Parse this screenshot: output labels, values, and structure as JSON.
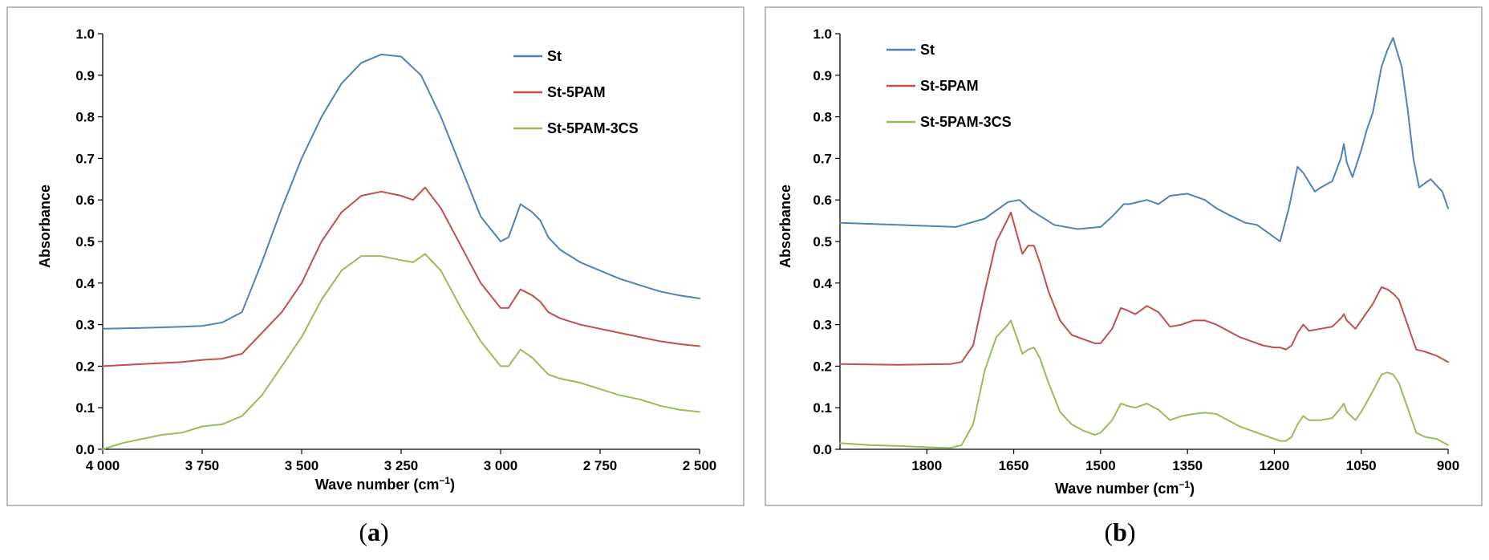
{
  "chart_data": [
    {
      "type": "line",
      "panel_label": "a",
      "caption": {
        "open": "(",
        "letter": "a",
        "close": ")"
      },
      "xlabel": "Wave number  (cm",
      "xlabel_sup": "−1",
      "xlabel_close": ")",
      "ylabel": "Absorbance",
      "xlim": [
        4000,
        2500
      ],
      "ylim": [
        0,
        1.0
      ],
      "x_reversed": true,
      "x_ticks": [
        4000,
        3750,
        3500,
        3250,
        3000,
        2750,
        2500
      ],
      "x_tick_labels": [
        "4 000",
        "3 750",
        "3 500",
        "3 250",
        "3 000",
        "2 750",
        "2 500"
      ],
      "y_ticks": [
        0,
        0.1,
        0.2,
        0.3,
        0.4,
        0.5,
        0.6,
        0.7,
        0.8,
        0.9,
        1.0
      ],
      "y_tick_labels": [
        "0.0",
        "0.1",
        "0.2",
        "0.3",
        "0.4",
        "0.5",
        "0.6",
        "0.7",
        "0.8",
        "0.9",
        "1.0"
      ],
      "legend_position": "top-right",
      "series": [
        {
          "name": "St",
          "color": "#4f81bd",
          "x": [
            4000,
            3900,
            3800,
            3750,
            3700,
            3650,
            3600,
            3550,
            3500,
            3450,
            3400,
            3350,
            3300,
            3250,
            3200,
            3150,
            3100,
            3050,
            3000,
            2980,
            2950,
            2920,
            2900,
            2880,
            2850,
            2800,
            2750,
            2700,
            2650,
            2600,
            2550,
            2500
          ],
          "y": [
            0.29,
            0.292,
            0.295,
            0.297,
            0.305,
            0.33,
            0.45,
            0.58,
            0.7,
            0.8,
            0.88,
            0.93,
            0.95,
            0.945,
            0.9,
            0.8,
            0.68,
            0.56,
            0.5,
            0.51,
            0.59,
            0.57,
            0.55,
            0.51,
            0.48,
            0.45,
            0.43,
            0.41,
            0.395,
            0.38,
            0.37,
            0.363
          ]
        },
        {
          "name": "St-5PAM",
          "color": "#c0504d",
          "x": [
            4000,
            3900,
            3800,
            3750,
            3700,
            3650,
            3600,
            3550,
            3500,
            3450,
            3400,
            3350,
            3300,
            3250,
            3220,
            3190,
            3150,
            3100,
            3050,
            3000,
            2980,
            2950,
            2920,
            2900,
            2880,
            2850,
            2800,
            2750,
            2700,
            2650,
            2600,
            2550,
            2500
          ],
          "y": [
            0.2,
            0.205,
            0.21,
            0.215,
            0.218,
            0.23,
            0.28,
            0.33,
            0.4,
            0.5,
            0.57,
            0.61,
            0.62,
            0.61,
            0.6,
            0.63,
            0.58,
            0.49,
            0.4,
            0.34,
            0.34,
            0.385,
            0.37,
            0.355,
            0.33,
            0.315,
            0.3,
            0.29,
            0.28,
            0.27,
            0.26,
            0.253,
            0.248
          ]
        },
        {
          "name": "St-5PAM-3CS",
          "color": "#9bbb59",
          "x": [
            4000,
            3950,
            3900,
            3850,
            3800,
            3750,
            3700,
            3650,
            3600,
            3550,
            3500,
            3450,
            3400,
            3350,
            3300,
            3250,
            3220,
            3190,
            3150,
            3100,
            3050,
            3000,
            2980,
            2950,
            2920,
            2900,
            2880,
            2850,
            2800,
            2750,
            2700,
            2650,
            2600,
            2550,
            2500
          ],
          "y": [
            0.0,
            0.015,
            0.025,
            0.035,
            0.04,
            0.055,
            0.06,
            0.08,
            0.13,
            0.2,
            0.27,
            0.36,
            0.43,
            0.465,
            0.465,
            0.455,
            0.45,
            0.47,
            0.43,
            0.34,
            0.26,
            0.2,
            0.2,
            0.24,
            0.22,
            0.2,
            0.18,
            0.17,
            0.16,
            0.145,
            0.13,
            0.12,
            0.105,
            0.095,
            0.09
          ]
        }
      ]
    },
    {
      "type": "line",
      "panel_label": "b",
      "caption": {
        "open": "(",
        "letter": "b",
        "close": ")"
      },
      "xlabel": "Wave number (cm",
      "xlabel_sup": "−1",
      "xlabel_close": ")",
      "ylabel": "Absorbance",
      "xlim": [
        1950,
        900
      ],
      "ylim": [
        0,
        1.0
      ],
      "x_reversed": true,
      "x_ticks": [
        1800,
        1650,
        1500,
        1350,
        1200,
        1050,
        900
      ],
      "x_tick_labels": [
        "1800",
        "1650",
        "1500",
        "1350",
        "1200",
        "1050",
        "900"
      ],
      "y_ticks": [
        0,
        0.1,
        0.2,
        0.3,
        0.4,
        0.5,
        0.6,
        0.7,
        0.8,
        0.9,
        1.0
      ],
      "y_tick_labels": [
        "0.0",
        "0.1",
        "0.2",
        "0.3",
        "0.4",
        "0.5",
        "0.6",
        "0.7",
        "0.8",
        "0.9",
        "1.0"
      ],
      "legend_position": "top-left",
      "series": [
        {
          "name": "St",
          "color": "#4f81bd",
          "x": [
            1950,
            1850,
            1750,
            1700,
            1660,
            1640,
            1620,
            1580,
            1540,
            1500,
            1480,
            1460,
            1450,
            1420,
            1400,
            1380,
            1350,
            1320,
            1300,
            1280,
            1250,
            1230,
            1210,
            1190,
            1175,
            1160,
            1150,
            1130,
            1120,
            1100,
            1085,
            1080,
            1075,
            1065,
            1050,
            1040,
            1030,
            1015,
            1005,
            995,
            980,
            970,
            960,
            950,
            930,
            910,
            900
          ],
          "y": [
            0.545,
            0.54,
            0.535,
            0.555,
            0.595,
            0.6,
            0.575,
            0.54,
            0.53,
            0.535,
            0.56,
            0.59,
            0.59,
            0.6,
            0.59,
            0.61,
            0.615,
            0.6,
            0.58,
            0.565,
            0.545,
            0.54,
            0.52,
            0.5,
            0.58,
            0.68,
            0.665,
            0.62,
            0.63,
            0.645,
            0.7,
            0.735,
            0.69,
            0.655,
            0.72,
            0.77,
            0.81,
            0.92,
            0.96,
            0.99,
            0.92,
            0.82,
            0.7,
            0.63,
            0.65,
            0.62,
            0.58
          ]
        },
        {
          "name": "St-5PAM",
          "color": "#c0504d",
          "x": [
            1950,
            1850,
            1760,
            1740,
            1720,
            1700,
            1680,
            1660,
            1655,
            1645,
            1635,
            1625,
            1615,
            1605,
            1590,
            1570,
            1550,
            1530,
            1510,
            1500,
            1480,
            1465,
            1455,
            1440,
            1420,
            1400,
            1380,
            1360,
            1340,
            1320,
            1300,
            1280,
            1260,
            1240,
            1220,
            1200,
            1190,
            1180,
            1170,
            1160,
            1150,
            1140,
            1120,
            1100,
            1085,
            1080,
            1075,
            1060,
            1050,
            1030,
            1015,
            1005,
            995,
            985,
            970,
            955,
            940,
            920,
            900
          ],
          "y": [
            0.205,
            0.203,
            0.205,
            0.21,
            0.25,
            0.38,
            0.5,
            0.555,
            0.57,
            0.52,
            0.47,
            0.49,
            0.49,
            0.45,
            0.38,
            0.31,
            0.275,
            0.265,
            0.255,
            0.255,
            0.29,
            0.34,
            0.335,
            0.325,
            0.345,
            0.33,
            0.295,
            0.3,
            0.31,
            0.31,
            0.3,
            0.285,
            0.27,
            0.26,
            0.25,
            0.245,
            0.245,
            0.24,
            0.25,
            0.28,
            0.3,
            0.285,
            0.29,
            0.295,
            0.315,
            0.325,
            0.31,
            0.29,
            0.31,
            0.35,
            0.39,
            0.385,
            0.375,
            0.36,
            0.3,
            0.24,
            0.235,
            0.225,
            0.21
          ]
        },
        {
          "name": "St-5PAM-3CS",
          "color": "#9bbb59",
          "x": [
            1950,
            1900,
            1850,
            1800,
            1760,
            1740,
            1720,
            1700,
            1680,
            1660,
            1655,
            1645,
            1635,
            1625,
            1615,
            1605,
            1590,
            1570,
            1550,
            1530,
            1510,
            1500,
            1480,
            1465,
            1455,
            1440,
            1420,
            1400,
            1380,
            1360,
            1340,
            1320,
            1300,
            1280,
            1260,
            1240,
            1220,
            1200,
            1190,
            1180,
            1170,
            1160,
            1150,
            1140,
            1120,
            1100,
            1085,
            1080,
            1075,
            1060,
            1050,
            1030,
            1015,
            1005,
            995,
            985,
            970,
            955,
            940,
            920,
            900
          ],
          "y": [
            0.015,
            0.01,
            0.008,
            0.005,
            0.003,
            0.01,
            0.06,
            0.19,
            0.27,
            0.3,
            0.31,
            0.27,
            0.23,
            0.24,
            0.245,
            0.22,
            0.16,
            0.09,
            0.06,
            0.045,
            0.035,
            0.04,
            0.07,
            0.11,
            0.105,
            0.1,
            0.11,
            0.095,
            0.07,
            0.08,
            0.085,
            0.088,
            0.085,
            0.07,
            0.055,
            0.045,
            0.035,
            0.025,
            0.02,
            0.02,
            0.03,
            0.06,
            0.08,
            0.07,
            0.07,
            0.075,
            0.1,
            0.11,
            0.09,
            0.07,
            0.09,
            0.14,
            0.18,
            0.185,
            0.18,
            0.16,
            0.1,
            0.04,
            0.03,
            0.025,
            0.01
          ]
        }
      ]
    }
  ]
}
